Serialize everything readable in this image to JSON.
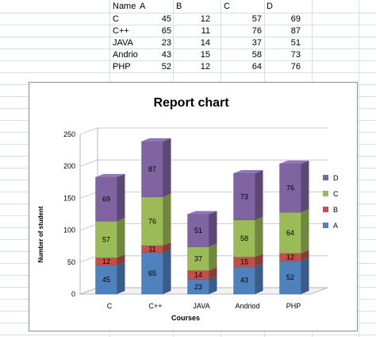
{
  "sheet": {
    "header_row": [
      "Name",
      "A",
      "B",
      "C",
      "D"
    ],
    "rows": [
      {
        "name": "C",
        "values": [
          "45",
          "12",
          "57",
          "69"
        ]
      },
      {
        "name": "C++",
        "values": [
          "65",
          "11",
          "76",
          "87"
        ]
      },
      {
        "name": "JAVA",
        "values": [
          "23",
          "14",
          "37",
          "51"
        ]
      },
      {
        "name": "Andrio",
        "values": [
          "43",
          "15",
          "58",
          "73"
        ]
      },
      {
        "name": "PHP",
        "values": [
          "52",
          "12",
          "64",
          "76"
        ]
      }
    ]
  },
  "colors": {
    "A": "#4f81bd",
    "B": "#c0504d",
    "C": "#9bbb59",
    "D": "#8064a2",
    "grid": "#d9dfe8",
    "chart_gridline": "#bfbfbf"
  },
  "chart_data": {
    "type": "bar",
    "stacked": true,
    "style": "3d-column",
    "title": "Report chart",
    "xlabel": "Courses",
    "ylabel": "Number of student",
    "categories": [
      "C",
      "C++",
      "JAVA",
      "Andriod",
      "PHP"
    ],
    "series": [
      {
        "name": "A",
        "values": [
          45,
          65,
          23,
          43,
          52
        ]
      },
      {
        "name": "B",
        "values": [
          12,
          11,
          14,
          15,
          12
        ]
      },
      {
        "name": "C",
        "values": [
          57,
          76,
          37,
          58,
          64
        ]
      },
      {
        "name": "D",
        "values": [
          69,
          87,
          51,
          73,
          76
        ]
      }
    ],
    "ylim": [
      0,
      250
    ],
    "yticks": [
      0,
      50,
      100,
      150,
      200,
      250
    ],
    "grid": true,
    "legend_position": "right",
    "legend_order": [
      "D",
      "C",
      "B",
      "A"
    ]
  }
}
